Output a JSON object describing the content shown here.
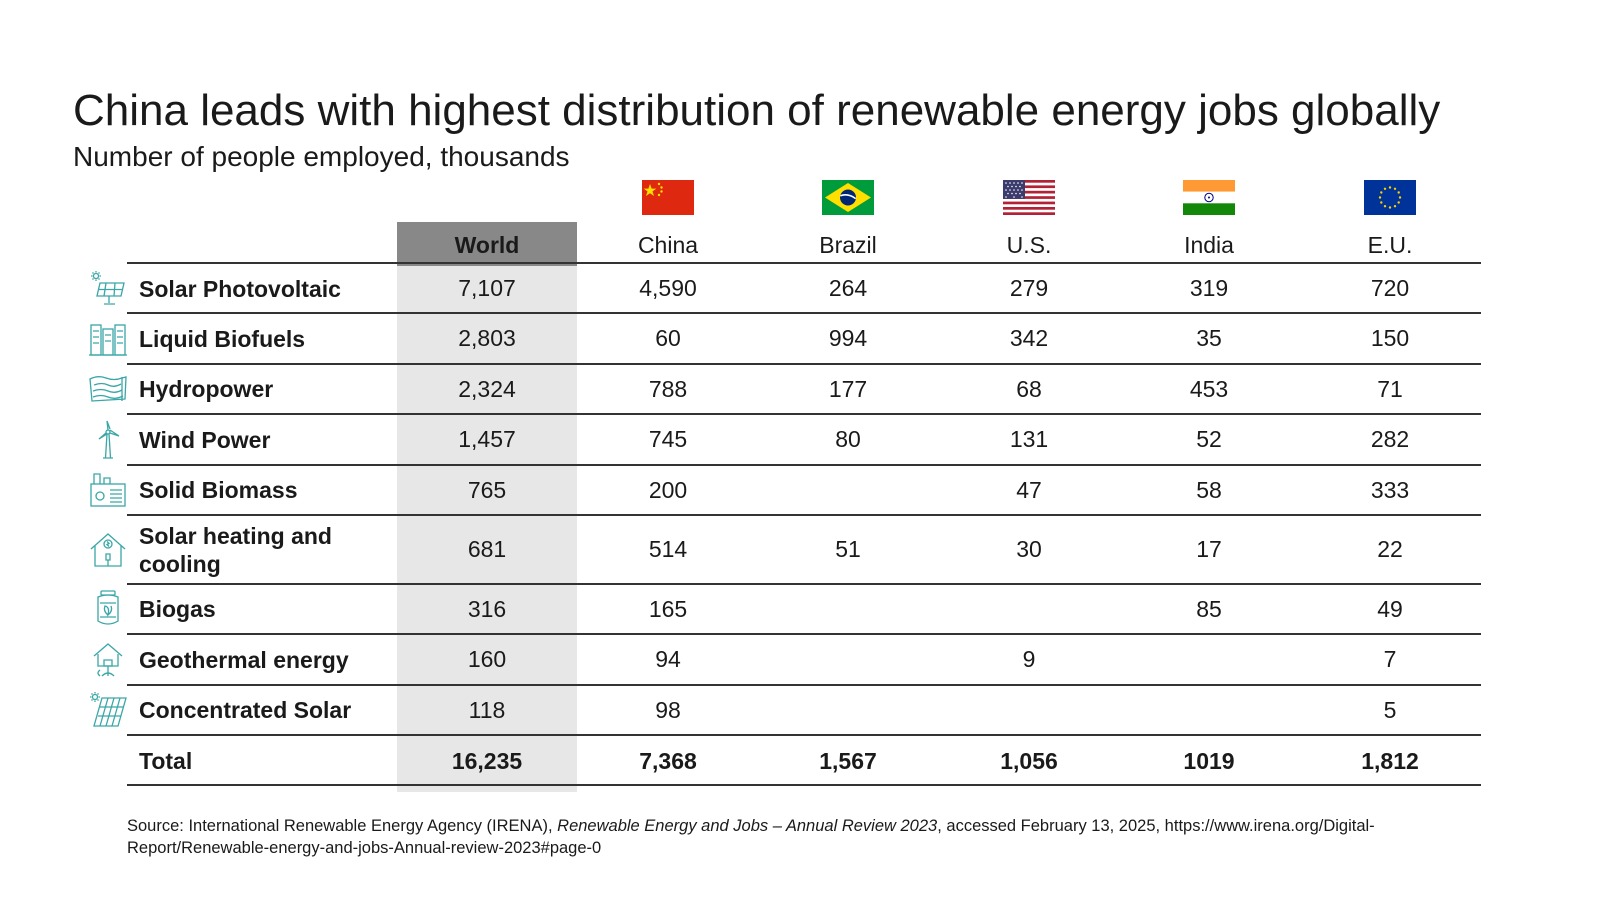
{
  "title": "China leads with highest distribution of renewable energy jobs globally",
  "subtitle": "Number of people employed, thousands",
  "colors": {
    "world_header": "#888888",
    "world_column": "#e7e7e7",
    "icon": "#3aa6a6",
    "rule": "#333333"
  },
  "chart_data": {
    "type": "table",
    "title": "China leads with highest distribution of renewable energy jobs globally",
    "subtitle": "Number of people employed, thousands",
    "columns": [
      {
        "label": "World",
        "flag": ""
      },
      {
        "label": "China",
        "flag": "china-flag-icon"
      },
      {
        "label": "Brazil",
        "flag": "brazil-flag-icon"
      },
      {
        "label": "U.S.",
        "flag": "us-flag-icon"
      },
      {
        "label": "India",
        "flag": "india-flag-icon"
      },
      {
        "label": "E.U.",
        "flag": "eu-flag-icon"
      }
    ],
    "rows": [
      {
        "label": "Solar Photovoltaic",
        "icon": "solar-panel-icon",
        "values": [
          "7,107",
          "4,590",
          "264",
          "279",
          "319",
          "720"
        ]
      },
      {
        "label": "Liquid Biofuels",
        "icon": "biofuel-plant-icon",
        "values": [
          "2,803",
          "60",
          "994",
          "342",
          "35",
          "150"
        ]
      },
      {
        "label": "Hydropower",
        "icon": "hydropower-dam-icon",
        "values": [
          "2,324",
          "788",
          "177",
          "68",
          "453",
          "71"
        ]
      },
      {
        "label": "Wind Power",
        "icon": "wind-turbine-icon",
        "values": [
          "1,457",
          "745",
          "80",
          "131",
          "52",
          "282"
        ]
      },
      {
        "label": "Solid Biomass",
        "icon": "biomass-plant-icon",
        "values": [
          "765",
          "200",
          "",
          "47",
          "58",
          "333"
        ]
      },
      {
        "label": "Solar heating and cooling",
        "icon": "solar-home-icon",
        "values": [
          "681",
          "514",
          "51",
          "30",
          "17",
          "22"
        ]
      },
      {
        "label": "Biogas",
        "icon": "biogas-tank-icon",
        "values": [
          "316",
          "165",
          "",
          "",
          "85",
          "49"
        ]
      },
      {
        "label": "Geothermal energy",
        "icon": "geothermal-icon",
        "values": [
          "160",
          "94",
          "",
          "9",
          "",
          "7"
        ]
      },
      {
        "label": "Concentrated Solar",
        "icon": "concentrated-solar-icon",
        "values": [
          "118",
          "98",
          "",
          "",
          "",
          "5"
        ]
      }
    ],
    "total": {
      "label": "Total",
      "values": [
        "16,235",
        "7,368",
        "1,567",
        "1,056",
        "1019",
        "1,812"
      ]
    }
  },
  "source": {
    "prefix": "Source: International Renewable Energy Agency (IRENA), ",
    "italic": "Renewable Energy and Jobs – Annual Review 2023",
    "suffix": ", accessed February 13, 2025, https://www.irena.org/Digital-Report/Renewable-energy-and-jobs-Annual-review-2023#page-0"
  }
}
